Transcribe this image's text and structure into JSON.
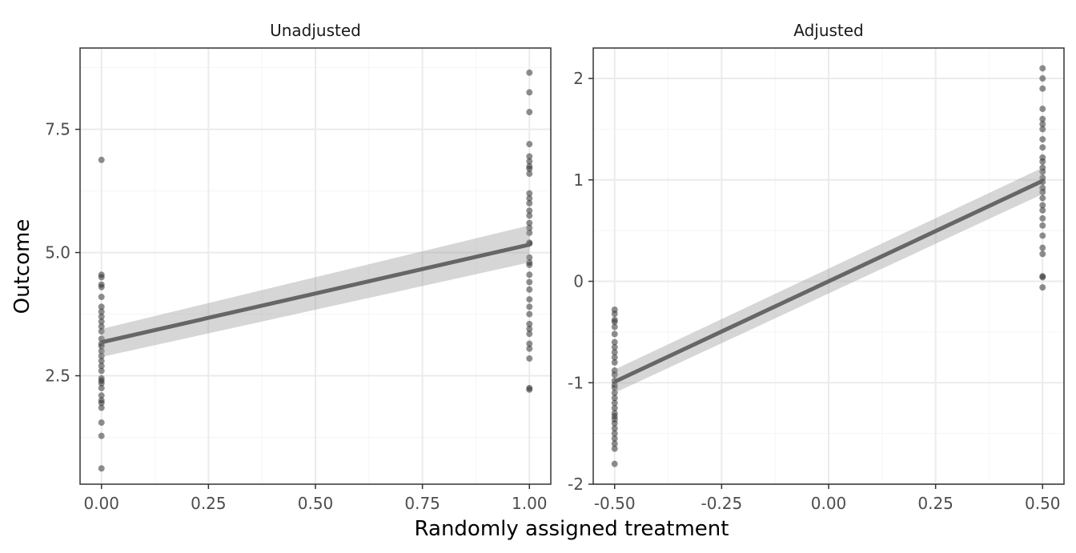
{
  "chart_data": {
    "type": "scatter",
    "xlabel": "Randomly assigned treatment",
    "ylabel": "Outcome",
    "colors": {
      "point": "#333333",
      "line": "#666666",
      "band": "#999999",
      "grid_major": "#ebebeb",
      "grid_minor": "#f5f5f5",
      "border": "#333333"
    },
    "panels": [
      {
        "title": "Unadjusted",
        "xlim": [
          -0.05,
          1.05
        ],
        "ylim": [
          0.3,
          9.15
        ],
        "xticks": [
          0,
          0.25,
          0.5,
          0.75,
          1
        ],
        "xtick_labels": [
          "0.00",
          "0.25",
          "0.50",
          "0.75",
          "1.00"
        ],
        "yticks": [
          2.5,
          5,
          7.5
        ],
        "ytick_labels": [
          "2.5",
          "5.0",
          "7.5"
        ],
        "fit_line": {
          "x": [
            0,
            1
          ],
          "y": [
            3.18,
            5.16
          ]
        },
        "ci_band": {
          "x": [
            0,
            1
          ],
          "lower": [
            2.88,
            4.8
          ],
          "upper": [
            3.45,
            5.55
          ]
        },
        "points": [
          {
            "x": 0,
            "y": 6.88
          },
          {
            "x": 0,
            "y": 4.55
          },
          {
            "x": 0,
            "y": 4.5
          },
          {
            "x": 0,
            "y": 4.35
          },
          {
            "x": 0,
            "y": 4.3
          },
          {
            "x": 0,
            "y": 4.1
          },
          {
            "x": 0,
            "y": 3.9
          },
          {
            "x": 0,
            "y": 3.8
          },
          {
            "x": 0,
            "y": 3.7
          },
          {
            "x": 0,
            "y": 3.6
          },
          {
            "x": 0,
            "y": 3.5
          },
          {
            "x": 0,
            "y": 3.4
          },
          {
            "x": 0,
            "y": 3.25
          },
          {
            "x": 0,
            "y": 3.15
          },
          {
            "x": 0,
            "y": 3.1
          },
          {
            "x": 0,
            "y": 3.0
          },
          {
            "x": 0,
            "y": 2.9
          },
          {
            "x": 0,
            "y": 2.8
          },
          {
            "x": 0,
            "y": 2.7
          },
          {
            "x": 0,
            "y": 2.6
          },
          {
            "x": 0,
            "y": 2.45
          },
          {
            "x": 0,
            "y": 2.4
          },
          {
            "x": 0,
            "y": 2.35
          },
          {
            "x": 0,
            "y": 2.25
          },
          {
            "x": 0,
            "y": 2.1
          },
          {
            "x": 0,
            "y": 2.0
          },
          {
            "x": 0,
            "y": 1.95
          },
          {
            "x": 0,
            "y": 1.85
          },
          {
            "x": 0,
            "y": 1.55
          },
          {
            "x": 0,
            "y": 1.28
          },
          {
            "x": 0,
            "y": 0.62
          },
          {
            "x": 1,
            "y": 8.65
          },
          {
            "x": 1,
            "y": 8.25
          },
          {
            "x": 1,
            "y": 7.85
          },
          {
            "x": 1,
            "y": 7.2
          },
          {
            "x": 1,
            "y": 6.95
          },
          {
            "x": 1,
            "y": 6.85
          },
          {
            "x": 1,
            "y": 6.75
          },
          {
            "x": 1,
            "y": 6.7
          },
          {
            "x": 1,
            "y": 6.6
          },
          {
            "x": 1,
            "y": 6.2
          },
          {
            "x": 1,
            "y": 6.1
          },
          {
            "x": 1,
            "y": 6.0
          },
          {
            "x": 1,
            "y": 5.85
          },
          {
            "x": 1,
            "y": 5.75
          },
          {
            "x": 1,
            "y": 5.6
          },
          {
            "x": 1,
            "y": 5.5
          },
          {
            "x": 1,
            "y": 5.4
          },
          {
            "x": 1,
            "y": 5.2
          },
          {
            "x": 1,
            "y": 5.18
          },
          {
            "x": 1,
            "y": 4.9
          },
          {
            "x": 1,
            "y": 4.8
          },
          {
            "x": 1,
            "y": 4.75
          },
          {
            "x": 1,
            "y": 4.55
          },
          {
            "x": 1,
            "y": 4.4
          },
          {
            "x": 1,
            "y": 4.25
          },
          {
            "x": 1,
            "y": 4.05
          },
          {
            "x": 1,
            "y": 3.9
          },
          {
            "x": 1,
            "y": 3.75
          },
          {
            "x": 1,
            "y": 3.55
          },
          {
            "x": 1,
            "y": 3.45
          },
          {
            "x": 1,
            "y": 3.35
          },
          {
            "x": 1,
            "y": 3.15
          },
          {
            "x": 1,
            "y": 3.05
          },
          {
            "x": 1,
            "y": 2.85
          },
          {
            "x": 1,
            "y": 2.25
          },
          {
            "x": 1,
            "y": 2.22
          }
        ]
      },
      {
        "title": "Adjusted",
        "xlim": [
          -0.55,
          0.55
        ],
        "ylim": [
          -2.0,
          2.3
        ],
        "xticks": [
          -0.5,
          -0.25,
          0,
          0.25,
          0.5
        ],
        "xtick_labels": [
          "-0.50",
          "-0.25",
          "0.00",
          "0.25",
          "0.50"
        ],
        "yticks": [
          -2,
          -1,
          0,
          1,
          2
        ],
        "ytick_labels": [
          "-2",
          "-1",
          "0",
          "1",
          "2"
        ],
        "fit_line": {
          "x": [
            -0.5,
            0.5
          ],
          "y": [
            -0.99,
            0.99
          ]
        },
        "ci_band": {
          "x": [
            -0.5,
            0.5
          ],
          "lower": [
            -1.1,
            0.86
          ],
          "upper": [
            -0.87,
            1.12
          ]
        },
        "points": [
          {
            "x": -0.5,
            "y": -0.28
          },
          {
            "x": -0.5,
            "y": -0.32
          },
          {
            "x": -0.5,
            "y": -0.38
          },
          {
            "x": -0.5,
            "y": -0.4
          },
          {
            "x": -0.5,
            "y": -0.45
          },
          {
            "x": -0.5,
            "y": -0.52
          },
          {
            "x": -0.5,
            "y": -0.6
          },
          {
            "x": -0.5,
            "y": -0.65
          },
          {
            "x": -0.5,
            "y": -0.7
          },
          {
            "x": -0.5,
            "y": -0.75
          },
          {
            "x": -0.5,
            "y": -0.8
          },
          {
            "x": -0.5,
            "y": -0.88
          },
          {
            "x": -0.5,
            "y": -0.92
          },
          {
            "x": -0.5,
            "y": -0.98
          },
          {
            "x": -0.5,
            "y": -1.02
          },
          {
            "x": -0.5,
            "y": -1.05
          },
          {
            "x": -0.5,
            "y": -1.1
          },
          {
            "x": -0.5,
            "y": -1.15
          },
          {
            "x": -0.5,
            "y": -1.2
          },
          {
            "x": -0.5,
            "y": -1.25
          },
          {
            "x": -0.5,
            "y": -1.3
          },
          {
            "x": -0.5,
            "y": -1.33
          },
          {
            "x": -0.5,
            "y": -1.36
          },
          {
            "x": -0.5,
            "y": -1.4
          },
          {
            "x": -0.5,
            "y": -1.45
          },
          {
            "x": -0.5,
            "y": -1.5
          },
          {
            "x": -0.5,
            "y": -1.55
          },
          {
            "x": -0.5,
            "y": -1.6
          },
          {
            "x": -0.5,
            "y": -1.65
          },
          {
            "x": -0.5,
            "y": -1.8
          },
          {
            "x": 0.5,
            "y": 2.1
          },
          {
            "x": 0.5,
            "y": 2.0
          },
          {
            "x": 0.5,
            "y": 1.9
          },
          {
            "x": 0.5,
            "y": 1.7
          },
          {
            "x": 0.5,
            "y": 1.6
          },
          {
            "x": 0.5,
            "y": 1.55
          },
          {
            "x": 0.5,
            "y": 1.5
          },
          {
            "x": 0.5,
            "y": 1.4
          },
          {
            "x": 0.5,
            "y": 1.32
          },
          {
            "x": 0.5,
            "y": 1.22
          },
          {
            "x": 0.5,
            "y": 1.18
          },
          {
            "x": 0.5,
            "y": 1.12
          },
          {
            "x": 0.5,
            "y": 1.08
          },
          {
            "x": 0.5,
            "y": 1.02
          },
          {
            "x": 0.5,
            "y": 0.98
          },
          {
            "x": 0.5,
            "y": 0.92
          },
          {
            "x": 0.5,
            "y": 0.88
          },
          {
            "x": 0.5,
            "y": 0.82
          },
          {
            "x": 0.5,
            "y": 0.75
          },
          {
            "x": 0.5,
            "y": 0.7
          },
          {
            "x": 0.5,
            "y": 0.62
          },
          {
            "x": 0.5,
            "y": 0.55
          },
          {
            "x": 0.5,
            "y": 0.45
          },
          {
            "x": 0.5,
            "y": 0.33
          },
          {
            "x": 0.5,
            "y": 0.27
          },
          {
            "x": 0.5,
            "y": 0.05
          },
          {
            "x": 0.5,
            "y": 0.04
          },
          {
            "x": 0.5,
            "y": -0.06
          }
        ]
      }
    ]
  }
}
